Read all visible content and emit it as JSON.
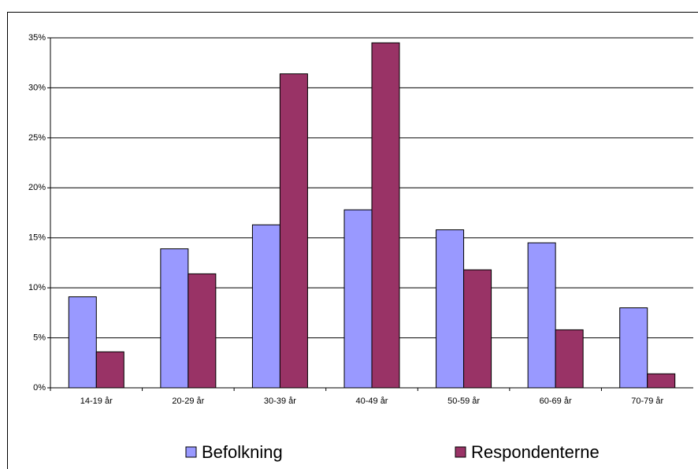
{
  "chart_data": {
    "type": "bar",
    "categories": [
      "14-19 år",
      "20-29 år",
      "30-39 år",
      "40-49 år",
      "50-59 år",
      "60-69 år",
      "70-79 år"
    ],
    "series": [
      {
        "name": "Befolkning",
        "color": "#9999ff",
        "values": [
          9.1,
          13.9,
          16.3,
          17.8,
          15.8,
          14.5,
          8.0
        ]
      },
      {
        "name": "Respondenterne",
        "color": "#993366",
        "values": [
          3.6,
          11.4,
          31.4,
          34.5,
          11.8,
          5.8,
          1.4
        ]
      }
    ],
    "ylim": [
      0,
      35
    ],
    "yticks": [
      {
        "value": 0,
        "label": "0%"
      },
      {
        "value": 5,
        "label": "5%"
      },
      {
        "value": 10,
        "label": "10%"
      },
      {
        "value": 15,
        "label": "15%"
      },
      {
        "value": 20,
        "label": "20%"
      },
      {
        "value": 25,
        "label": "25%"
      },
      {
        "value": 30,
        "label": "30%"
      },
      {
        "value": 35,
        "label": "35%"
      }
    ],
    "grid": true
  }
}
